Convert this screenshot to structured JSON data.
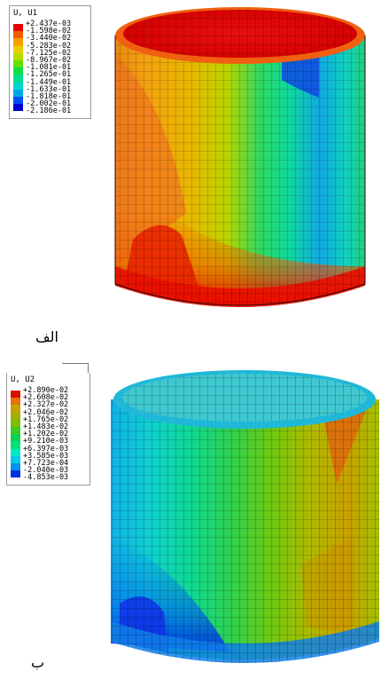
{
  "figure_a": {
    "legend": {
      "title": "U, U1",
      "values": [
        "+2.437e-03",
        "-1.598e-02",
        "-3.440e-02",
        "-5.283e-02",
        "-7.125e-02",
        "-8.967e-02",
        "-1.081e-01",
        "-1.265e-01",
        "-1.449e-01",
        "-1.633e-01",
        "-1.818e-01",
        "-2.002e-01",
        "-2.186e-01"
      ],
      "colors": [
        "#e80000",
        "#f05a00",
        "#f8a000",
        "#e8d000",
        "#b8dc00",
        "#60e000",
        "#10e040",
        "#00e090",
        "#00d8d0",
        "#00a8e8",
        "#0050f0",
        "#0000d0"
      ]
    },
    "caption": "الف",
    "mesh_icon": "cylinder-mesh-u1"
  },
  "figure_b": {
    "legend": {
      "title": "U, U2",
      "values": [
        "+2.890e-02",
        "+2.608e-02",
        "+2.327e-02",
        "+2.046e-02",
        "+1.765e-02",
        "+1.483e-02",
        "+1.202e-02",
        "+9.210e-03",
        "+6.397e-03",
        "+3.585e-03",
        "+7.723e-04",
        "-2.040e-03",
        "-4.853e-03"
      ],
      "colors": [
        "#d81000",
        "#e87000",
        "#c8a000",
        "#a0b000",
        "#78c000",
        "#40c820",
        "#10d050",
        "#00e080",
        "#00e8c0",
        "#00c8e8",
        "#0090f0",
        "#0030e0"
      ]
    },
    "caption": "ب",
    "mesh_icon": "cylinder-mesh-u2"
  }
}
